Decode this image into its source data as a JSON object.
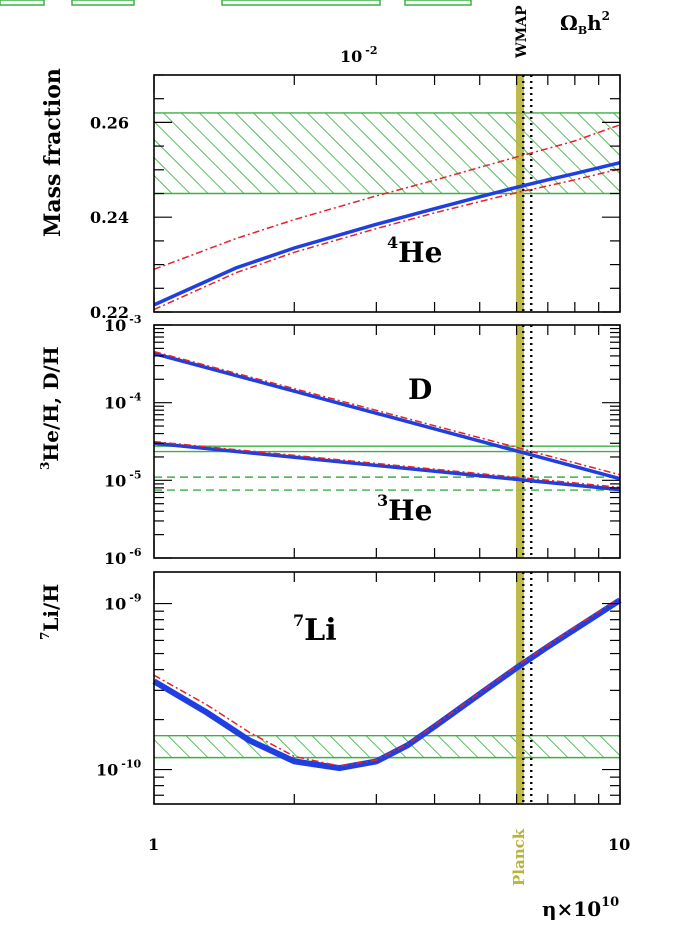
{
  "colors": {
    "model": "#1f3fe0",
    "uncertainty": "#e8202a",
    "observation": "#3cb043",
    "planck": "#b7b436",
    "wmap": "#000000",
    "axis": "#000000"
  },
  "header": {
    "top_axis_label": "Ω",
    "top_axis_label_sub": "B",
    "top_axis_label_rest": "h",
    "top_axis_label_sup": "2",
    "top_tick_base": "10",
    "top_tick_exp": "-2",
    "wmap_label": "WMAP"
  },
  "x_axis": {
    "label": "η×10",
    "label_sup": "10",
    "ticks": [
      "1",
      "10"
    ],
    "planck_label": "Planck"
  },
  "chart_data": [
    {
      "type": "line",
      "panel": "helium-4",
      "ylabel": "Mass fraction",
      "annotation": "He",
      "annotation_sup": "4",
      "x_scale": "log",
      "xlim": [
        1,
        10
      ],
      "ylim": [
        0.22,
        0.27
      ],
      "yticks": [
        "0.22",
        "0.24",
        "0.26"
      ],
      "observed_band": [
        0.245,
        0.262
      ],
      "series": [
        {
          "role": "central",
          "x": [
            1,
            1.5,
            2,
            3,
            4,
            5,
            6,
            7,
            8,
            10
          ],
          "values": [
            0.2215,
            0.2293,
            0.2335,
            0.2385,
            0.2418,
            0.2443,
            0.2463,
            0.2479,
            0.2492,
            0.2515
          ]
        },
        {
          "role": "upper",
          "x": [
            1,
            1.5,
            2,
            3,
            4,
            5,
            6,
            7,
            8,
            10
          ],
          "values": [
            0.229,
            0.2355,
            0.2395,
            0.2445,
            0.2478,
            0.2505,
            0.2527,
            0.2545,
            0.2561,
            0.2595
          ]
        },
        {
          "role": "lower",
          "x": [
            1,
            1.5,
            2,
            3,
            4,
            5,
            6,
            7,
            8,
            10
          ],
          "values": [
            0.2205,
            0.2283,
            0.2326,
            0.2376,
            0.2409,
            0.2433,
            0.2452,
            0.2466,
            0.2479,
            0.2502
          ]
        }
      ]
    },
    {
      "type": "line",
      "panel": "deuterium-helium-3",
      "ylabel": "He/H, D/H",
      "ylabel_sup": "3",
      "annotations": [
        {
          "text": "D",
          "sup": ""
        },
        {
          "text": "He",
          "sup": "3"
        }
      ],
      "x_scale": "log",
      "y_scale": "log",
      "xlim": [
        1,
        10
      ],
      "ylim_exp": [
        -6,
        -3
      ],
      "yticks": [
        {
          "base": "10",
          "exp": "-3"
        },
        {
          "base": "10",
          "exp": "-4"
        },
        {
          "base": "10",
          "exp": "-5"
        },
        {
          "base": "10",
          "exp": "-6"
        }
      ],
      "observed_band_D": [
        2.35e-05,
        2.75e-05
      ],
      "observed_band_He3_dashed": [
        7.5e-06,
        1.1e-05
      ],
      "series": [
        {
          "role": "D-central",
          "x": [
            1,
            10
          ],
          "values": [
            0.00043,
            1.05e-05
          ]
        },
        {
          "role": "D-upper",
          "x": [
            1,
            10
          ],
          "values": [
            0.000455,
            1.18e-05
          ]
        },
        {
          "role": "He3-central",
          "x": [
            1,
            10
          ],
          "values": [
            3e-05,
            7.6e-06
          ]
        },
        {
          "role": "He3-upper",
          "x": [
            1,
            10
          ],
          "values": [
            3.15e-05,
            8.1e-06
          ]
        }
      ]
    },
    {
      "type": "line",
      "panel": "lithium-7",
      "ylabel": "Li/H",
      "ylabel_sup": "7",
      "annotation": "Li",
      "annotation_sup": "7",
      "x_scale": "log",
      "y_scale": "log",
      "xlim": [
        1,
        10
      ],
      "ylim": [
        6.2e-11,
        1.55e-09
      ],
      "yticks": [
        {
          "base": "10",
          "exp": "-9"
        },
        {
          "base": "10",
          "exp": "-10"
        }
      ],
      "observed_band": [
        1.18e-10,
        1.6e-10
      ],
      "series": [
        {
          "role": "central",
          "x": [
            1,
            1.3,
            1.6,
            2,
            2.5,
            3,
            3.5,
            4,
            5,
            6,
            7,
            8,
            10
          ],
          "values": [
            3.4e-10,
            2.2e-10,
            1.5e-10,
            1.12e-10,
            1.02e-10,
            1.12e-10,
            1.4e-10,
            1.82e-10,
            2.85e-10,
            4.1e-10,
            5.5e-10,
            7e-10,
            1.05e-09
          ]
        },
        {
          "role": "upper",
          "x": [
            1,
            1.3,
            1.6,
            2,
            2.5,
            3,
            3.5,
            4,
            5,
            6,
            7,
            8,
            10
          ],
          "values": [
            3.7e-10,
            2.45e-10,
            1.68e-10,
            1.2e-10,
            1.05e-10,
            1.14e-10,
            1.42e-10,
            1.85e-10,
            2.9e-10,
            4.2e-10,
            5.6e-10,
            7.2e-10,
            1.08e-09
          ]
        }
      ]
    }
  ],
  "vertical_markers": {
    "planck_eta": 6.1,
    "wmap_eta": [
      6.2,
      6.45
    ]
  }
}
